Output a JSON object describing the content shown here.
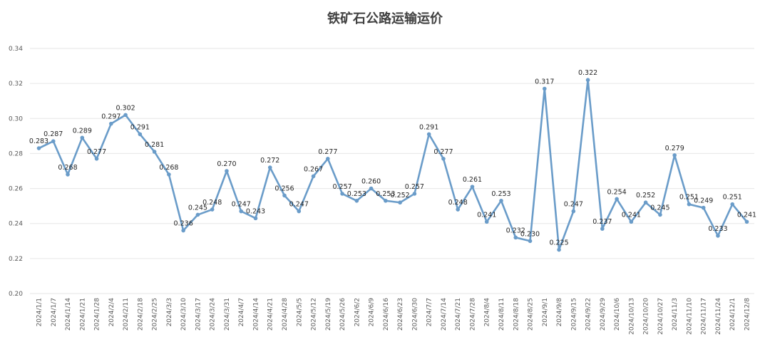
{
  "chart_data": {
    "type": "line",
    "title": "铁矿石公路运输运价",
    "xlabel": "",
    "ylabel": "",
    "ylim": [
      0.2,
      0.34
    ],
    "yticks": [
      "0.20",
      "0.22",
      "0.24",
      "0.26",
      "0.28",
      "0.30",
      "0.32",
      "0.34"
    ],
    "grid": true,
    "legend": "none",
    "color": "#6a9cc9",
    "categories": [
      "2024/1/1",
      "2024/1/7",
      "2024/1/14",
      "2024/1/21",
      "2024/1/28",
      "2024/2/4",
      "2024/2/11",
      "2024/2/18",
      "2024/2/25",
      "2024/3/3",
      "2024/3/10",
      "2024/3/17",
      "2024/3/24",
      "2024/3/31",
      "2024/4/7",
      "2024/4/14",
      "2024/4/21",
      "2024/4/28",
      "2024/5/5",
      "2024/5/12",
      "2024/5/19",
      "2024/5/26",
      "2024/6/2",
      "2024/6/9",
      "2024/6/16",
      "2024/6/23",
      "2024/6/30",
      "2024/7/7",
      "2024/7/14",
      "2024/7/21",
      "2024/7/28",
      "2024/8/4",
      "2024/8/11",
      "2024/8/18",
      "2024/8/25",
      "2024/9/1",
      "2024/9/8",
      "2024/9/15",
      "2024/9/22",
      "2024/9/29",
      "2024/10/6",
      "2024/10/13",
      "2024/10/20",
      "2024/10/27",
      "2024/11/3",
      "2024/11/10",
      "2024/11/17",
      "2024/11/24",
      "2024/12/1",
      "2024/12/8"
    ],
    "values": [
      0.283,
      0.287,
      0.268,
      0.289,
      0.277,
      0.297,
      0.302,
      0.291,
      0.281,
      0.268,
      0.236,
      0.245,
      0.248,
      0.27,
      0.247,
      0.243,
      0.272,
      0.256,
      0.247,
      0.267,
      0.277,
      0.257,
      0.253,
      0.26,
      0.253,
      0.252,
      0.257,
      0.291,
      0.277,
      0.248,
      0.261,
      0.241,
      0.253,
      0.232,
      0.23,
      0.317,
      0.225,
      0.247,
      0.322,
      0.237,
      0.254,
      0.241,
      0.252,
      0.245,
      0.279,
      0.251,
      0.249,
      0.233,
      0.251,
      0.241
    ],
    "labels": [
      "0.283",
      "0.287",
      "0.268",
      "0.289",
      "0.277",
      "0.297",
      "0.302",
      "0.291",
      "0.281",
      "0.268",
      "0.236",
      "0.245",
      "0.248",
      "0.270",
      "0.247",
      "0.243",
      "0.272",
      "0.256",
      "0.247",
      "0.267",
      "0.277",
      "0.257",
      "0.253",
      "0.260",
      "0.253",
      "0.252",
      "0.257",
      "0.291",
      "0.277",
      "0.248",
      "0.261",
      "0.241",
      "0.253",
      "0.232",
      "0.230",
      "0.317",
      "0.225",
      "0.247",
      "0.322",
      "0.237",
      "0.254",
      "0.241",
      "0.252",
      "0.245",
      "0.279",
      "0.251",
      "0.249",
      "0.233",
      "0.251",
      "0.241"
    ]
  }
}
